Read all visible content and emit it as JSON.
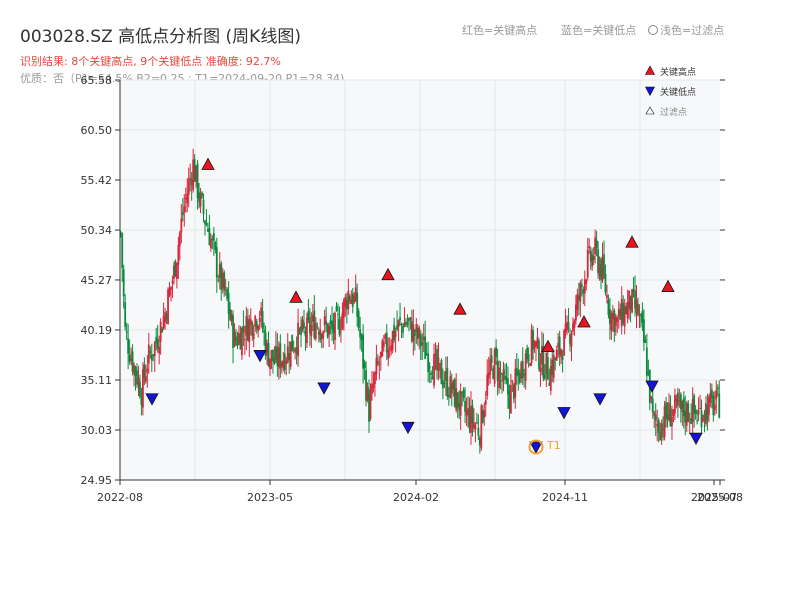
{
  "header": {
    "title": "003028.SZ 高低点分析图 (周K线图)",
    "result": "识别结果: 8个关键高点, 9个关键低点  准确度: 92.7%",
    "quality": "优质：否（P1=54.5%  B2=0.25 ; T1=2024-09-20 P1=28.34)"
  },
  "top_legend": {
    "red": "红色=关键高点",
    "blue": "蓝色=关键低点",
    "filtered": "浅色=过滤点"
  },
  "plot_legend": {
    "high": "关键高点",
    "low": "关键低点",
    "filtered": "过滤点"
  },
  "annotation": {
    "label": "T1"
  },
  "colors": {
    "up": "#d7263d",
    "down": "#0b8a3c",
    "high_marker": "#e8141e",
    "low_marker": "#1414d6",
    "highlight": "#f0a030",
    "plot_bg": "#f7f8fa",
    "grid": "#e4e6ea"
  },
  "chart_data": {
    "type": "candlestick",
    "title": "003028.SZ 高低点分析图 (周K线图)",
    "xlabel": "",
    "ylabel": "",
    "y_ticks": [
      24.95,
      30.03,
      35.11,
      40.19,
      45.27,
      50.34,
      55.42,
      60.5,
      65.58
    ],
    "ylim": [
      24.95,
      65.58
    ],
    "x_ticks": [
      "2022-08",
      "2023-05",
      "2024-02",
      "2024-11",
      "2025-07",
      "2025-08"
    ],
    "grid": true,
    "key_highs": [
      {
        "date": "2022-12",
        "price": 57.0
      },
      {
        "date": "2023-06",
        "price": 43.5
      },
      {
        "date": "2024-01",
        "price": 45.8
      },
      {
        "date": "2024-05",
        "price": 42.3
      },
      {
        "date": "2024-10",
        "price": 38.5
      },
      {
        "date": "2024-12",
        "price": 41.0
      },
      {
        "date": "2025-03",
        "price": 49.1
      },
      {
        "date": "2025-05",
        "price": 44.6
      }
    ],
    "key_lows": [
      {
        "date": "2022-09",
        "price": 33.2
      },
      {
        "date": "2023-05",
        "price": 37.6
      },
      {
        "date": "2023-08",
        "price": 34.3
      },
      {
        "date": "2024-02",
        "price": 30.3
      },
      {
        "date": "2024-09",
        "price": 28.3
      },
      {
        "date": "2024-11",
        "price": 31.8
      },
      {
        "date": "2025-01",
        "price": 33.2
      },
      {
        "date": "2025-04",
        "price": 34.5
      },
      {
        "date": "2025-06",
        "price": 29.2
      }
    ],
    "legend": [
      "关键高点",
      "关键低点",
      "过滤点"
    ],
    "legend_position": "top-right"
  }
}
